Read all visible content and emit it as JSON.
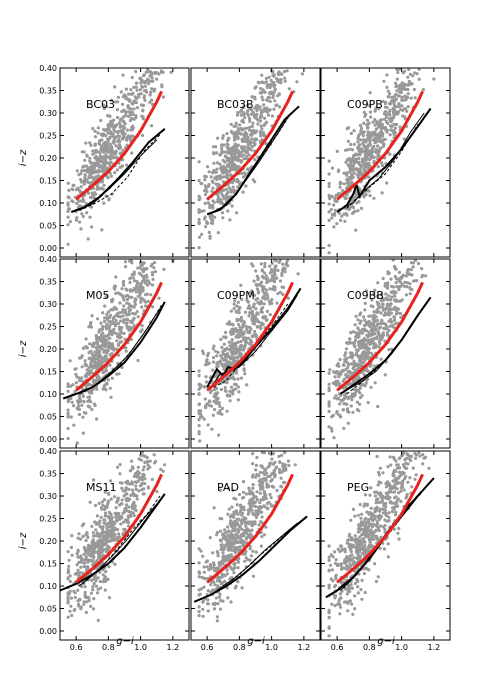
{
  "figure": {
    "xlabel": "g−i",
    "ylabel": "i−z",
    "colors": {
      "scatter": "#999999",
      "observed_fit": "#e8231e",
      "model": "#000000",
      "outlier": "#4fa3e0"
    }
  },
  "chart_data": [
    {
      "type": "scatter",
      "panel": "BC03",
      "xlim": [
        0.5,
        1.3
      ],
      "ylim": [
        -0.02,
        0.4
      ],
      "xticks": [
        "0.6",
        "0.8",
        "1.0",
        "1.2"
      ],
      "yticks": [
        "0.00",
        "0.05",
        "0.10",
        "0.15",
        "0.20",
        "0.25",
        "0.30",
        "0.35",
        "0.40"
      ],
      "show_xticks": false,
      "show_yticks": true,
      "red_line": {
        "x": [
          0.6,
          0.7,
          0.8,
          0.9,
          1.0,
          1.1,
          1.13
        ],
        "y": [
          0.108,
          0.138,
          0.17,
          0.21,
          0.26,
          0.325,
          0.348
        ]
      },
      "model_lines": [
        {
          "x": [
            0.57,
            0.65,
            0.75,
            0.85,
            0.95,
            1.05,
            1.15
          ],
          "y": [
            0.08,
            0.09,
            0.115,
            0.15,
            0.19,
            0.235,
            0.265
          ]
        },
        {
          "x": [
            0.62,
            0.7,
            0.8,
            0.9,
            1.0,
            1.1
          ],
          "y": [
            0.085,
            0.098,
            0.13,
            0.165,
            0.205,
            0.24
          ]
        },
        {
          "x": [
            0.62,
            0.72,
            0.82,
            0.92,
            1.02,
            1.12
          ],
          "y": [
            0.083,
            0.1,
            0.12,
            0.158,
            0.215,
            0.252
          ]
        }
      ]
    },
    {
      "type": "scatter",
      "panel": "BC03B",
      "xlim": [
        0.5,
        1.3
      ],
      "ylim": [
        -0.02,
        0.4
      ],
      "xticks": [
        "0.6",
        "0.8",
        "1.0",
        "1.2"
      ],
      "yticks": [
        "0.00",
        "0.05",
        "0.10",
        "0.15",
        "0.20",
        "0.25",
        "0.30",
        "0.35",
        "0.40"
      ],
      "show_xticks": false,
      "show_yticks": false,
      "red_line": {
        "x": [
          0.6,
          0.7,
          0.8,
          0.9,
          1.0,
          1.1,
          1.13
        ],
        "y": [
          0.108,
          0.138,
          0.17,
          0.21,
          0.26,
          0.325,
          0.348
        ]
      },
      "model_lines": [
        {
          "x": [
            0.6,
            0.68,
            0.78,
            0.88,
            0.98,
            1.08,
            1.17
          ],
          "y": [
            0.075,
            0.085,
            0.12,
            0.175,
            0.23,
            0.285,
            0.315
          ]
        },
        {
          "x": [
            0.62,
            0.72,
            0.82,
            0.92,
            1.02,
            1.1
          ],
          "y": [
            0.078,
            0.095,
            0.14,
            0.19,
            0.245,
            0.29
          ]
        },
        {
          "x": [
            0.64,
            0.74,
            0.84,
            0.94,
            1.04,
            1.12
          ],
          "y": [
            0.08,
            0.102,
            0.15,
            0.205,
            0.255,
            0.3
          ]
        }
      ]
    },
    {
      "type": "scatter",
      "panel": "C09PB",
      "xlim": [
        0.5,
        1.3
      ],
      "ylim": [
        -0.02,
        0.4
      ],
      "xticks": [
        "0.6",
        "0.8",
        "1.0",
        "1.2"
      ],
      "yticks": [
        "0.00",
        "0.05",
        "0.10",
        "0.15",
        "0.20",
        "0.25",
        "0.30",
        "0.35",
        "0.40"
      ],
      "show_xticks": false,
      "show_yticks": false,
      "red_line": {
        "x": [
          0.6,
          0.7,
          0.8,
          0.9,
          1.0,
          1.1,
          1.13
        ],
        "y": [
          0.108,
          0.138,
          0.17,
          0.21,
          0.26,
          0.325,
          0.348
        ]
      },
      "model_lines": [
        {
          "x": [
            0.6,
            0.66,
            0.7,
            0.72,
            0.74,
            0.8,
            0.9,
            1.0,
            1.1,
            1.18
          ],
          "y": [
            0.08,
            0.095,
            0.12,
            0.14,
            0.115,
            0.15,
            0.18,
            0.22,
            0.27,
            0.31
          ]
        },
        {
          "x": [
            0.64,
            0.7,
            0.76,
            0.86,
            0.96,
            1.06,
            1.14
          ],
          "y": [
            0.09,
            0.1,
            0.125,
            0.155,
            0.2,
            0.26,
            0.3
          ]
        },
        {
          "x": [
            0.66,
            0.72,
            0.8,
            0.9,
            1.0,
            1.1
          ],
          "y": [
            0.088,
            0.11,
            0.135,
            0.165,
            0.215,
            0.275
          ]
        }
      ]
    },
    {
      "type": "scatter",
      "panel": "M05",
      "xlim": [
        0.5,
        1.3
      ],
      "ylim": [
        -0.02,
        0.4
      ],
      "xticks": [
        "0.6",
        "0.8",
        "1.0",
        "1.2"
      ],
      "yticks": [
        "0.00",
        "0.05",
        "0.10",
        "0.15",
        "0.20",
        "0.25",
        "0.30",
        "0.35",
        "0.40"
      ],
      "show_xticks": false,
      "show_yticks": true,
      "red_line": {
        "x": [
          0.6,
          0.7,
          0.8,
          0.9,
          1.0,
          1.1,
          1.13
        ],
        "y": [
          0.108,
          0.138,
          0.17,
          0.21,
          0.26,
          0.325,
          0.348
        ]
      },
      "model_lines": [
        {
          "x": [
            0.52,
            0.6,
            0.7,
            0.8,
            0.9,
            1.0,
            1.1,
            1.15
          ],
          "y": [
            0.09,
            0.1,
            0.115,
            0.14,
            0.17,
            0.215,
            0.27,
            0.305
          ]
        },
        {
          "x": [
            0.62,
            0.72,
            0.82,
            0.92,
            1.02,
            1.12
          ],
          "y": [
            0.1,
            0.12,
            0.15,
            0.185,
            0.235,
            0.29
          ]
        },
        {
          "x": [
            0.65,
            0.75,
            0.85,
            0.95,
            1.05,
            1.13
          ],
          "y": [
            0.105,
            0.125,
            0.155,
            0.2,
            0.25,
            0.298
          ]
        }
      ]
    },
    {
      "type": "scatter",
      "panel": "C09PM",
      "xlim": [
        0.5,
        1.3
      ],
      "ylim": [
        -0.02,
        0.4
      ],
      "xticks": [
        "0.6",
        "0.8",
        "1.0",
        "1.2"
      ],
      "yticks": [
        "0.00",
        "0.05",
        "0.10",
        "0.15",
        "0.20",
        "0.25",
        "0.30",
        "0.35",
        "0.40"
      ],
      "show_xticks": false,
      "show_yticks": false,
      "red_line": {
        "x": [
          0.6,
          0.7,
          0.8,
          0.9,
          1.0,
          1.1,
          1.13
        ],
        "y": [
          0.108,
          0.138,
          0.17,
          0.21,
          0.26,
          0.325,
          0.348
        ]
      },
      "model_lines": [
        {
          "x": [
            0.6,
            0.66,
            0.7,
            0.73,
            0.77,
            0.82,
            0.9,
            1.0,
            1.1,
            1.18
          ],
          "y": [
            0.115,
            0.155,
            0.14,
            0.16,
            0.155,
            0.17,
            0.205,
            0.245,
            0.29,
            0.335
          ]
        },
        {
          "x": [
            0.62,
            0.68,
            0.74,
            0.8,
            0.9,
            1.0,
            1.1,
            1.16
          ],
          "y": [
            0.11,
            0.145,
            0.15,
            0.16,
            0.195,
            0.24,
            0.285,
            0.32
          ]
        },
        {
          "x": [
            0.64,
            0.72,
            0.8,
            0.9,
            1.0,
            1.1
          ],
          "y": [
            0.115,
            0.13,
            0.165,
            0.21,
            0.25,
            0.3
          ]
        }
      ]
    },
    {
      "type": "scatter",
      "panel": "C09BB",
      "xlim": [
        0.5,
        1.3
      ],
      "ylim": [
        -0.02,
        0.4
      ],
      "xticks": [
        "0.6",
        "0.8",
        "1.0",
        "1.2"
      ],
      "yticks": [
        "0.00",
        "0.05",
        "0.10",
        "0.15",
        "0.20",
        "0.25",
        "0.30",
        "0.35",
        "0.40"
      ],
      "show_xticks": false,
      "show_yticks": false,
      "red_line": {
        "x": [
          0.6,
          0.7,
          0.8,
          0.9,
          1.0,
          1.1,
          1.13
        ],
        "y": [
          0.108,
          0.138,
          0.17,
          0.21,
          0.26,
          0.325,
          0.348
        ]
      },
      "model_lines": [
        {
          "x": [
            0.62,
            0.7,
            0.8,
            0.9,
            1.0,
            1.1,
            1.18
          ],
          "y": [
            0.1,
            0.12,
            0.145,
            0.175,
            0.22,
            0.275,
            0.315
          ]
        },
        {
          "x": [
            0.64,
            0.74,
            0.84,
            0.94,
            1.04,
            1.14
          ],
          "y": [
            0.105,
            0.125,
            0.15,
            0.19,
            0.24,
            0.295
          ]
        },
        {
          "x": [
            0.66,
            0.76,
            0.86,
            0.96,
            1.06,
            1.12
          ],
          "y": [
            0.1,
            0.128,
            0.16,
            0.2,
            0.255,
            0.285
          ]
        }
      ]
    },
    {
      "type": "scatter",
      "panel": "MS11",
      "xlim": [
        0.5,
        1.3
      ],
      "ylim": [
        -0.02,
        0.4
      ],
      "xticks": [
        "0.6",
        "0.8",
        "1.0",
        "1.2"
      ],
      "yticks": [
        "0.00",
        "0.05",
        "0.10",
        "0.15",
        "0.20",
        "0.25",
        "0.30",
        "0.35",
        "0.40"
      ],
      "show_xticks": true,
      "show_yticks": true,
      "red_line": {
        "x": [
          0.6,
          0.7,
          0.8,
          0.9,
          1.0,
          1.1,
          1.13
        ],
        "y": [
          0.108,
          0.138,
          0.17,
          0.21,
          0.26,
          0.325,
          0.348
        ]
      },
      "model_lines": [
        {
          "x": [
            0.5,
            0.6,
            0.7,
            0.8,
            0.9,
            1.0,
            1.1,
            1.15
          ],
          "y": [
            0.09,
            0.105,
            0.125,
            0.15,
            0.185,
            0.23,
            0.28,
            0.305
          ]
        },
        {
          "x": [
            0.62,
            0.72,
            0.82,
            0.92,
            1.02,
            1.12
          ],
          "y": [
            0.1,
            0.13,
            0.165,
            0.205,
            0.25,
            0.29
          ]
        },
        {
          "x": [
            0.64,
            0.74,
            0.84,
            0.94,
            1.04,
            1.12
          ],
          "y": [
            0.105,
            0.135,
            0.175,
            0.22,
            0.26,
            0.3
          ]
        }
      ]
    },
    {
      "type": "scatter",
      "panel": "PAD",
      "xlim": [
        0.5,
        1.3
      ],
      "ylim": [
        -0.02,
        0.4
      ],
      "xticks": [
        "0.6",
        "0.8",
        "1.0",
        "1.2"
      ],
      "yticks": [
        "0.00",
        "0.05",
        "0.10",
        "0.15",
        "0.20",
        "0.25",
        "0.30",
        "0.35",
        "0.40"
      ],
      "show_xticks": true,
      "show_yticks": false,
      "red_line": {
        "x": [
          0.6,
          0.7,
          0.8,
          0.9,
          1.0,
          1.1,
          1.13
        ],
        "y": [
          0.108,
          0.138,
          0.17,
          0.21,
          0.26,
          0.325,
          0.348
        ]
      },
      "model_lines": [
        {
          "x": [
            0.52,
            0.62,
            0.72,
            0.82,
            0.92,
            1.02,
            1.12,
            1.22
          ],
          "y": [
            0.065,
            0.08,
            0.1,
            0.125,
            0.155,
            0.19,
            0.225,
            0.255
          ]
        },
        {
          "x": [
            0.66,
            0.76,
            0.86,
            0.96,
            1.06,
            1.16
          ],
          "y": [
            0.09,
            0.115,
            0.145,
            0.18,
            0.21,
            0.24
          ]
        },
        {
          "x": [
            0.7,
            0.8,
            0.9,
            1.0,
            1.1,
            1.2
          ],
          "y": [
            0.1,
            0.125,
            0.16,
            0.19,
            0.222,
            0.25
          ]
        }
      ]
    },
    {
      "type": "scatter",
      "panel": "PEG",
      "xlim": [
        0.5,
        1.3
      ],
      "ylim": [
        -0.02,
        0.4
      ],
      "xticks": [
        "0.6",
        "0.8",
        "1.0",
        "1.2"
      ],
      "yticks": [
        "0.00",
        "0.05",
        "0.10",
        "0.15",
        "0.20",
        "0.25",
        "0.30",
        "0.35",
        "0.40"
      ],
      "show_xticks": true,
      "show_yticks": false,
      "red_line": {
        "x": [
          0.6,
          0.7,
          0.8,
          0.9,
          1.0,
          1.1,
          1.13
        ],
        "y": [
          0.108,
          0.138,
          0.17,
          0.21,
          0.26,
          0.325,
          0.348
        ]
      },
      "model_lines": [
        {
          "x": [
            0.53,
            0.6,
            0.7,
            0.8,
            0.9,
            1.0,
            1.1,
            1.2
          ],
          "y": [
            0.075,
            0.09,
            0.12,
            0.16,
            0.21,
            0.255,
            0.3,
            0.34
          ]
        },
        {
          "x": [
            0.62,
            0.72,
            0.82,
            0.92,
            1.02,
            1.12
          ],
          "y": [
            0.09,
            0.125,
            0.175,
            0.225,
            0.27,
            0.31
          ]
        },
        {
          "x": [
            0.64,
            0.74,
            0.84,
            0.94,
            1.04,
            1.12
          ],
          "y": [
            0.095,
            0.135,
            0.185,
            0.235,
            0.28,
            0.305
          ]
        }
      ]
    }
  ]
}
